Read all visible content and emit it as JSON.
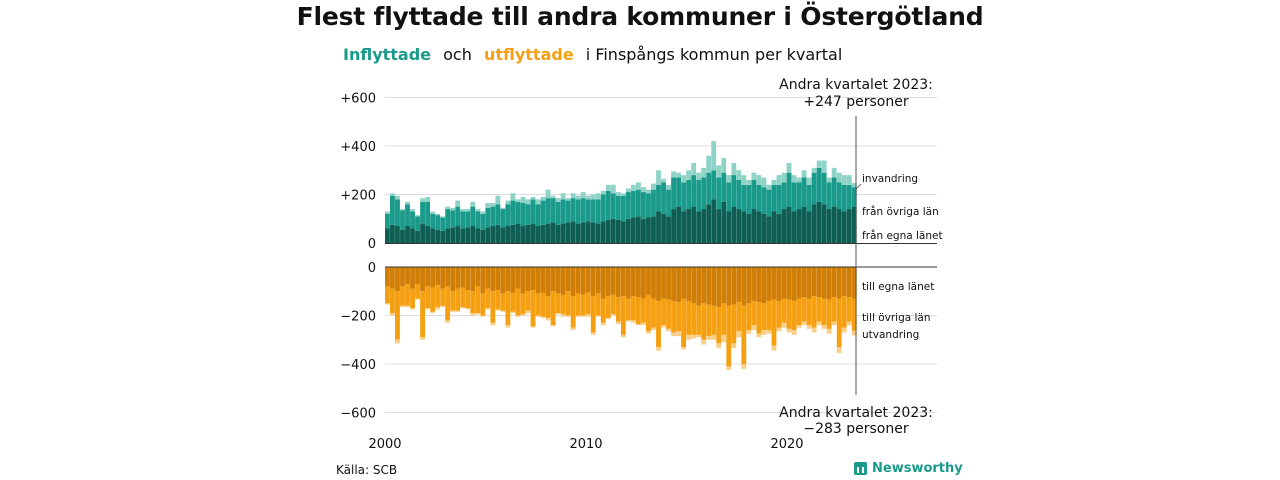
{
  "title": "Flest flyttade till andra kommuner i Östergötland",
  "subtitle": {
    "in_label": "Inflyttade",
    "and": "och",
    "out_label": "utflyttade",
    "rest": "i Finspångs  kommun  per  kvartal"
  },
  "source": "Källa: SCB",
  "brand": "Newsworthy",
  "colors": {
    "in_own": "#0f5e54",
    "in_other": "#1a9a8a",
    "in_immig": "#8fd3c7",
    "out_own": "#d07e06",
    "out_other": "#f5a012",
    "out_emig": "#f9cf89",
    "grid": "#dddddd"
  },
  "chart_data": {
    "type": "bar",
    "stacked": true,
    "x_start": "2000 Q1",
    "x_end": "2023 Q2",
    "x_ticks": [
      "2000",
      "2010",
      "2020"
    ],
    "y_ticks_top": [
      "+600",
      "+400",
      "+200",
      "0"
    ],
    "y_ticks_bottom": [
      "0",
      "−200",
      "−400",
      "−600"
    ],
    "ylim_top": [
      0,
      600
    ],
    "ylim_bottom": [
      -600,
      0
    ],
    "grid": true,
    "annotation_top": {
      "line1": "Andra kvartalet 2023:",
      "line2": "+247 personer"
    },
    "annotation_bottom": {
      "line1": "Andra kvartalet 2023:",
      "line2": "−283 personer"
    },
    "series_labels_in": [
      "invandring",
      "från övriga län",
      "från egna länet"
    ],
    "series_labels_out": [
      "till egna länet",
      "till övriga län",
      "utvandring"
    ],
    "inflow": {
      "from_own_county": [
        60,
        75,
        70,
        55,
        70,
        60,
        50,
        80,
        70,
        60,
        55,
        50,
        60,
        65,
        70,
        60,
        65,
        70,
        60,
        55,
        65,
        70,
        75,
        65,
        70,
        75,
        80,
        70,
        75,
        80,
        70,
        75,
        80,
        85,
        75,
        80,
        85,
        90,
        80,
        85,
        90,
        85,
        80,
        90,
        95,
        100,
        95,
        90,
        100,
        105,
        110,
        100,
        105,
        110,
        130,
        120,
        110,
        140,
        150,
        130,
        140,
        150,
        130,
        140,
        160,
        180,
        140,
        170,
        130,
        150,
        140,
        130,
        120,
        140,
        130,
        120,
        110,
        130,
        120,
        140,
        150,
        130,
        140,
        150,
        130,
        160,
        170,
        160,
        140,
        150,
        140,
        130,
        140,
        150
      ],
      "from_other_counties": [
        60,
        120,
        110,
        80,
        90,
        70,
        60,
        90,
        100,
        60,
        60,
        55,
        80,
        70,
        80,
        70,
        65,
        80,
        70,
        65,
        80,
        80,
        85,
        75,
        90,
        100,
        90,
        95,
        85,
        100,
        90,
        100,
        105,
        100,
        95,
        100,
        90,
        95,
        100,
        100,
        90,
        95,
        100,
        110,
        120,
        105,
        100,
        105,
        110,
        110,
        110,
        110,
        100,
        110,
        110,
        130,
        110,
        130,
        120,
        120,
        120,
        130,
        130,
        130,
        130,
        120,
        130,
        120,
        120,
        130,
        120,
        110,
        120,
        120,
        110,
        110,
        110,
        110,
        120,
        110,
        140,
        120,
        110,
        120,
        110,
        130,
        140,
        130,
        110,
        120,
        110,
        110,
        100,
        80
      ],
      "immigration": [
        10,
        10,
        15,
        5,
        10,
        10,
        5,
        15,
        20,
        10,
        5,
        5,
        10,
        10,
        25,
        10,
        10,
        20,
        10,
        10,
        20,
        15,
        35,
        5,
        15,
        30,
        10,
        25,
        20,
        10,
        20,
        15,
        35,
        10,
        15,
        25,
        10,
        20,
        15,
        25,
        15,
        20,
        25,
        15,
        25,
        35,
        15,
        10,
        15,
        25,
        30,
        20,
        15,
        25,
        60,
        15,
        20,
        25,
        20,
        30,
        40,
        50,
        30,
        40,
        70,
        120,
        50,
        60,
        30,
        50,
        40,
        40,
        20,
        30,
        40,
        40,
        20,
        20,
        40,
        40,
        40,
        30,
        20,
        30,
        30,
        20,
        30,
        50,
        20,
        40,
        40,
        40,
        40,
        17
      ]
    },
    "outflow": {
      "to_own_county": [
        -80,
        -90,
        -100,
        -80,
        -70,
        -90,
        -70,
        -100,
        -80,
        -85,
        -75,
        -90,
        -80,
        -100,
        -90,
        -85,
        -95,
        -100,
        -80,
        -110,
        -90,
        -100,
        -95,
        -110,
        -100,
        -105,
        -90,
        -110,
        -100,
        -95,
        -110,
        -105,
        -120,
        -100,
        -110,
        -115,
        -100,
        -120,
        -110,
        -115,
        -105,
        -120,
        -110,
        -130,
        -120,
        -115,
        -125,
        -120,
        -130,
        -120,
        -125,
        -130,
        -115,
        -130,
        -140,
        -130,
        -135,
        -140,
        -145,
        -130,
        -140,
        -150,
        -160,
        -150,
        -155,
        -160,
        -165,
        -150,
        -160,
        -155,
        -145,
        -160,
        -150,
        -140,
        -145,
        -150,
        -140,
        -135,
        -140,
        -130,
        -135,
        -140,
        -130,
        -125,
        -130,
        -120,
        -125,
        -130,
        -135,
        -125,
        -130,
        -120,
        -125,
        -130
      ],
      "to_other_counties": [
        -70,
        -100,
        -200,
        -80,
        -90,
        -80,
        -60,
        -190,
        -90,
        -100,
        -90,
        -70,
        -140,
        -80,
        -90,
        -80,
        -75,
        -90,
        -110,
        -90,
        -80,
        -130,
        -80,
        -70,
        -140,
        -80,
        -110,
        -85,
        -80,
        -150,
        -90,
        -100,
        -90,
        -140,
        -80,
        -80,
        -100,
        -130,
        -90,
        -85,
        -90,
        -150,
        -90,
        -100,
        -90,
        -80,
        -100,
        -160,
        -90,
        -100,
        -110,
        -100,
        -150,
        -120,
        -190,
        -110,
        -120,
        -130,
        -120,
        -200,
        -140,
        -130,
        -120,
        -150,
        -130,
        -120,
        -150,
        -130,
        -250,
        -160,
        -120,
        -240,
        -110,
        -100,
        -130,
        -110,
        -120,
        -190,
        -110,
        -100,
        -120,
        -120,
        -110,
        -100,
        -110,
        -130,
        -100,
        -110,
        -120,
        -100,
        -200,
        -130,
        -100,
        -133
      ],
      "emigration": [
        -5,
        -10,
        -15,
        -5,
        -5,
        -5,
        -5,
        -10,
        -5,
        -5,
        -10,
        -5,
        -10,
        -5,
        -5,
        -5,
        -5,
        -10,
        -5,
        -5,
        -5,
        -10,
        -5,
        -5,
        -10,
        -5,
        -5,
        -5,
        -10,
        -5,
        -5,
        -5,
        -10,
        -5,
        -5,
        -10,
        -5,
        -10,
        -5,
        -5,
        -10,
        -10,
        -5,
        -10,
        -5,
        -5,
        -10,
        -10,
        -5,
        -10,
        -5,
        -10,
        -10,
        -10,
        -15,
        -10,
        -10,
        -15,
        -20,
        -10,
        -20,
        -15,
        -10,
        -20,
        -15,
        -20,
        -20,
        -30,
        -15,
        -20,
        -25,
        -20,
        -15,
        -20,
        -15,
        -20,
        -15,
        -20,
        -15,
        -20,
        -15,
        -20,
        -10,
        -15,
        -15,
        -20,
        -15,
        -15,
        -20,
        -15,
        -25,
        -20,
        -15,
        -20
      ]
    }
  }
}
